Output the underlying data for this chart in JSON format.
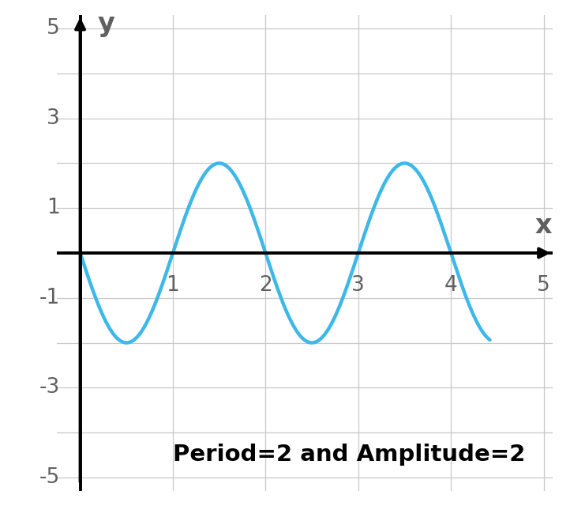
{
  "title": "Period=2 and Amplitude=2",
  "xlabel": "x",
  "ylabel": "y",
  "xlim": [
    -0.25,
    5.1
  ],
  "ylim": [
    -5.3,
    5.3
  ],
  "xticks": [
    1,
    2,
    3,
    4,
    5
  ],
  "yticks": [
    -5,
    -3,
    -1,
    1,
    3,
    5
  ],
  "amplitude": 2,
  "period": 2,
  "x_start": 0.0,
  "x_end": 4.42,
  "curve_color": "#3db8e8",
  "curve_linewidth": 3.2,
  "background_color": "#ffffff",
  "grid_color": "#c8c8c8",
  "axis_color": "#000000",
  "tick_label_color": "#606060",
  "title_fontsize": 21,
  "axis_label_fontsize": 24,
  "tick_fontsize": 19,
  "title_fontweight": "bold",
  "arrow_lw": 2.8,
  "arrow_mutation": 20
}
